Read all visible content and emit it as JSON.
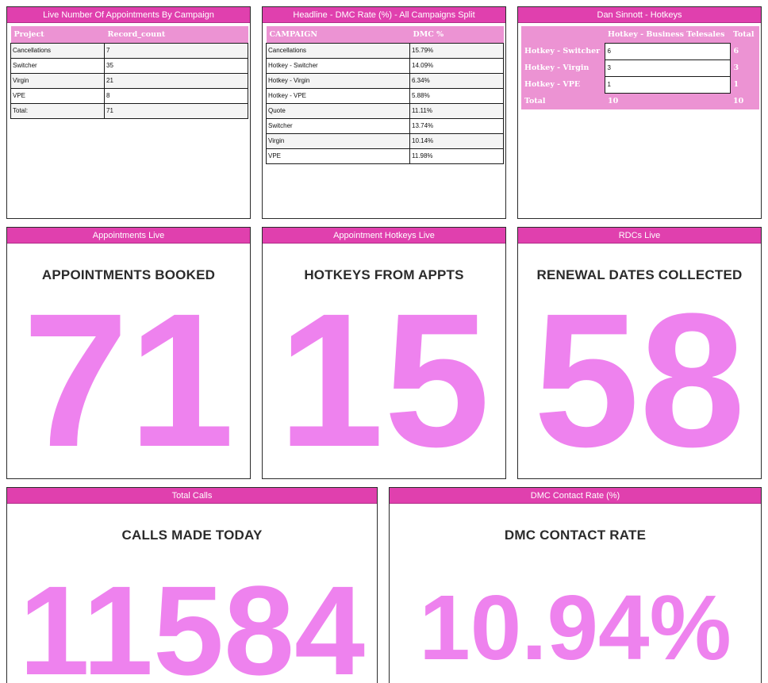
{
  "panels": {
    "campaign": {
      "title": "Live Number Of Appointments By Campaign",
      "columns": [
        "Project",
        "Record_count"
      ],
      "rows": [
        [
          "Cancellations",
          "7"
        ],
        [
          "Switcher",
          "35"
        ],
        [
          "Virgin",
          "21"
        ],
        [
          "VPE",
          "8"
        ],
        [
          "Total:",
          "71"
        ]
      ]
    },
    "dmc_split": {
      "title": "Headline - DMC Rate (%) - All Campaigns Split",
      "columns": [
        "CAMPAIGN",
        "DMC %"
      ],
      "rows": [
        [
          "Cancellations",
          "15.79%"
        ],
        [
          "Hotkey - Switcher",
          "14.09%"
        ],
        [
          "Hotkey - Virgin",
          "6.34%"
        ],
        [
          "Hotkey - VPE",
          "5.88%"
        ],
        [
          "Quote",
          "11.11%"
        ],
        [
          "Switcher",
          "13.74%"
        ],
        [
          "Virgin",
          "10.14%"
        ],
        [
          "VPE",
          "11.98%"
        ]
      ]
    },
    "hotkeys": {
      "title": "Dan Sinnott - Hotkeys",
      "columns": [
        "",
        "Hotkey - Business Telesales",
        "Total"
      ],
      "rows": [
        [
          "Hotkey - Switcher",
          "6",
          "6"
        ],
        [
          "Hotkey - Virgin",
          "3",
          "3"
        ],
        [
          "Hotkey - VPE",
          "1",
          "1"
        ]
      ],
      "footer": [
        "Total",
        "10",
        "10"
      ]
    },
    "appointments": {
      "title": "Appointments Live",
      "caption": "APPOINTMENTS BOOKED",
      "value": "71"
    },
    "hotkeys_live": {
      "title": "Appointment Hotkeys Live",
      "caption": "HOTKEYS FROM APPTS",
      "value": "15"
    },
    "rdcs": {
      "title": "RDCs Live",
      "caption": "RENEWAL DATES COLLECTED",
      "value": "58"
    },
    "total_calls": {
      "title": "Total Calls",
      "caption": "CALLS MADE TODAY",
      "value": "11584"
    },
    "dmc_rate": {
      "title": "DMC Contact Rate (%)",
      "caption": "DMC CONTACT RATE",
      "value": "10.94%"
    }
  },
  "colors": {
    "header": "#e040ae",
    "table_header": "#ec93d3",
    "kpi_value": "#ee82ee"
  }
}
